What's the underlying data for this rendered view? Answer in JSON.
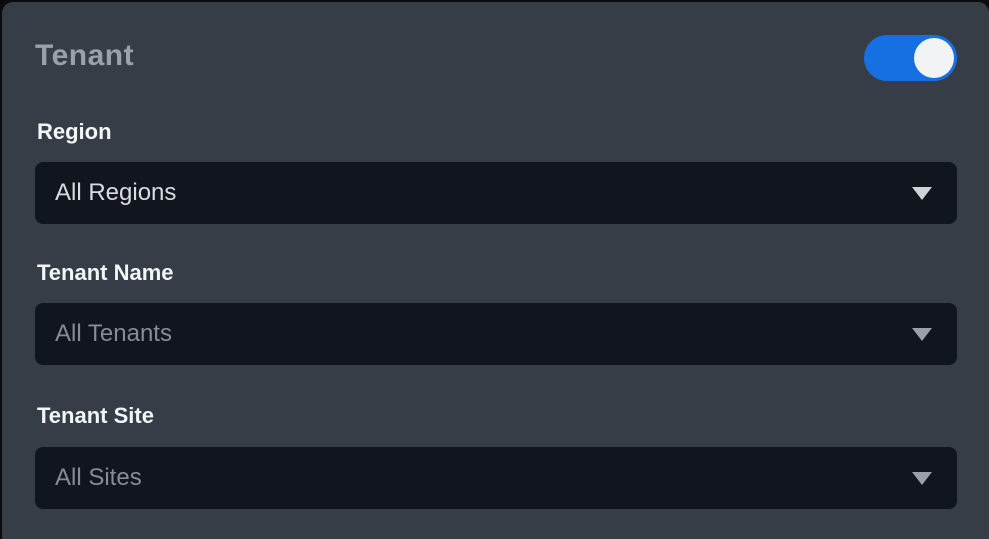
{
  "panel": {
    "title": "Tenant"
  },
  "toggle": {
    "name": "tenant-toggle",
    "state": "on"
  },
  "fields": [
    {
      "id": "region",
      "label": "Region",
      "value": "All Regions",
      "muted": false
    },
    {
      "id": "tenant-name",
      "label": "Tenant Name",
      "value": "All Tenants",
      "muted": true
    },
    {
      "id": "tenant-site",
      "label": "Tenant Site",
      "value": "All Sites",
      "muted": true
    }
  ],
  "colors": {
    "page_background": "#0a0c10",
    "card_background": "#373d46",
    "title_text": "#9ba1a8",
    "label_text": "#f3f5f7",
    "select_background": "#11151e",
    "select_text": "#d8dce0",
    "select_text_muted": "#868c94",
    "toggle_on": "#1670e2",
    "toggle_knob": "#f2f3f5"
  }
}
